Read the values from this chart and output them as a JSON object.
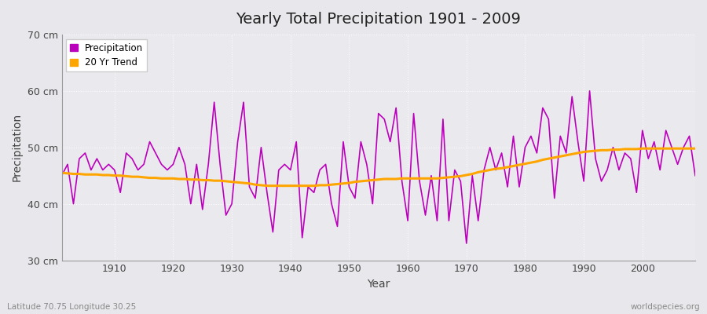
{
  "title": "Yearly Total Precipitation 1901 - 2009",
  "xlabel": "Year",
  "ylabel": "Precipitation",
  "subtitle": "Latitude 70.75 Longitude 30.25",
  "watermark": "worldspecies.org",
  "ylim": [
    30,
    70
  ],
  "ytick_labels": [
    "30 cm",
    "40 cm",
    "50 cm",
    "60 cm",
    "70 cm"
  ],
  "ytick_values": [
    30,
    40,
    50,
    60,
    70
  ],
  "fig_bg_color": "#e8e8ec",
  "plot_bg_color": "#eaeaee",
  "precip_color": "#bb00bb",
  "trend_color": "#ffa500",
  "legend_precip": "Precipitation",
  "legend_trend": "20 Yr Trend",
  "years": [
    1901,
    1902,
    1903,
    1904,
    1905,
    1906,
    1907,
    1908,
    1909,
    1910,
    1911,
    1912,
    1913,
    1914,
    1915,
    1916,
    1917,
    1918,
    1919,
    1920,
    1921,
    1922,
    1923,
    1924,
    1925,
    1926,
    1927,
    1928,
    1929,
    1930,
    1931,
    1932,
    1933,
    1934,
    1935,
    1936,
    1937,
    1938,
    1939,
    1940,
    1941,
    1942,
    1943,
    1944,
    1945,
    1946,
    1947,
    1948,
    1949,
    1950,
    1951,
    1952,
    1953,
    1954,
    1955,
    1956,
    1957,
    1958,
    1959,
    1960,
    1961,
    1962,
    1963,
    1964,
    1965,
    1966,
    1967,
    1968,
    1969,
    1970,
    1971,
    1972,
    1973,
    1974,
    1975,
    1976,
    1977,
    1978,
    1979,
    1980,
    1981,
    1982,
    1983,
    1984,
    1985,
    1986,
    1987,
    1988,
    1989,
    1990,
    1991,
    1992,
    1993,
    1994,
    1995,
    1996,
    1997,
    1998,
    1999,
    2000,
    2001,
    2002,
    2003,
    2004,
    2005,
    2006,
    2007,
    2008,
    2009
  ],
  "precip": [
    45,
    47,
    40,
    48,
    49,
    46,
    48,
    46,
    47,
    46,
    42,
    49,
    48,
    46,
    47,
    51,
    49,
    47,
    46,
    47,
    50,
    47,
    40,
    47,
    39,
    47,
    58,
    47,
    38,
    40,
    51,
    58,
    43,
    41,
    50,
    42,
    35,
    46,
    47,
    46,
    51,
    34,
    43,
    42,
    46,
    47,
    40,
    36,
    51,
    43,
    41,
    51,
    47,
    40,
    56,
    55,
    51,
    57,
    44,
    37,
    56,
    44,
    38,
    45,
    37,
    55,
    37,
    46,
    44,
    33,
    45,
    37,
    46,
    50,
    46,
    49,
    43,
    52,
    43,
    50,
    52,
    49,
    57,
    55,
    41,
    52,
    49,
    59,
    51,
    44,
    60,
    48,
    44,
    46,
    50,
    46,
    49,
    48,
    42,
    53,
    48,
    51,
    46,
    53,
    50,
    47,
    50,
    52,
    45
  ],
  "trend": [
    45.5,
    45.4,
    45.3,
    45.3,
    45.2,
    45.2,
    45.2,
    45.1,
    45.1,
    45.0,
    45.0,
    44.9,
    44.8,
    44.8,
    44.7,
    44.6,
    44.6,
    44.5,
    44.5,
    44.5,
    44.4,
    44.4,
    44.3,
    44.3,
    44.2,
    44.2,
    44.1,
    44.1,
    44.0,
    43.9,
    43.8,
    43.7,
    43.6,
    43.4,
    43.3,
    43.2,
    43.2,
    43.2,
    43.2,
    43.2,
    43.2,
    43.2,
    43.2,
    43.2,
    43.3,
    43.3,
    43.4,
    43.5,
    43.6,
    43.7,
    43.9,
    44.0,
    44.1,
    44.2,
    44.3,
    44.4,
    44.4,
    44.4,
    44.5,
    44.5,
    44.5,
    44.5,
    44.5,
    44.5,
    44.5,
    44.6,
    44.7,
    44.8,
    44.9,
    45.1,
    45.3,
    45.6,
    45.8,
    46.0,
    46.2,
    46.3,
    46.5,
    46.7,
    46.9,
    47.1,
    47.3,
    47.5,
    47.8,
    48.0,
    48.2,
    48.4,
    48.6,
    48.8,
    49.0,
    49.2,
    49.3,
    49.4,
    49.5,
    49.5,
    49.6,
    49.6,
    49.7,
    49.7,
    49.7,
    49.8,
    49.8,
    49.8,
    49.8,
    49.8,
    49.8,
    49.8,
    49.8,
    49.8,
    49.8
  ]
}
